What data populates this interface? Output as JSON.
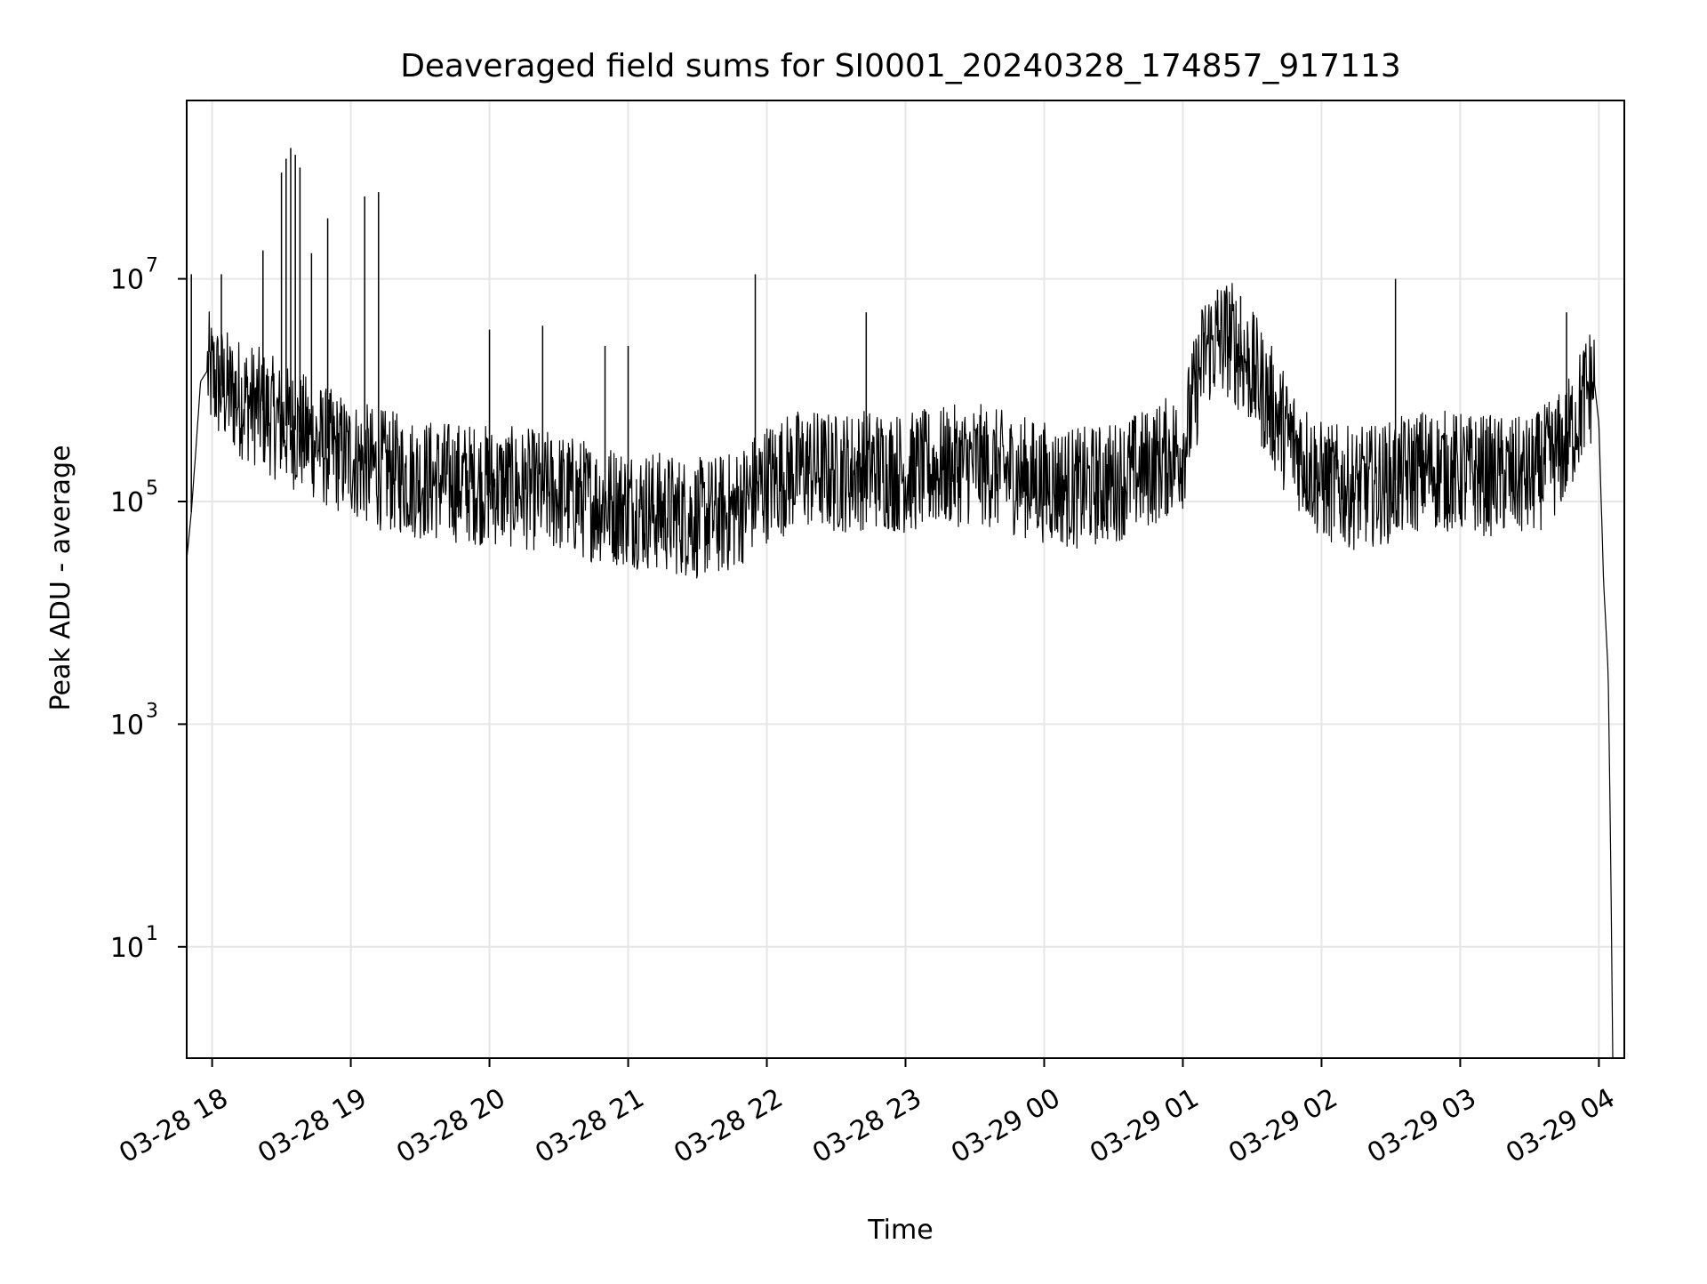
{
  "chart_data": {
    "type": "line",
    "title": "Deaveraged field sums for SI0001_20240328_174857_917113",
    "xlabel": "Time",
    "ylabel": "Peak ADU - average",
    "yscale": "log",
    "ylim": [
      1,
      400000000
    ],
    "xlim": [
      "03-28 17:49",
      "03-29 04:11"
    ],
    "x_ticks": [
      "03-28 18",
      "03-28 19",
      "03-28 20",
      "03-28 21",
      "03-28 22",
      "03-28 23",
      "03-29 00",
      "03-29 01",
      "03-29 02",
      "03-29 03",
      "03-29 04"
    ],
    "y_ticks": [
      {
        "value": 10,
        "base": "10",
        "exp": "1"
      },
      {
        "value": 1000,
        "base": "10",
        "exp": "3"
      },
      {
        "value": 100000,
        "base": "10",
        "exp": "5"
      },
      {
        "value": 10000000,
        "base": "10",
        "exp": "7"
      }
    ],
    "grid": true,
    "line_color": "#000000",
    "series": [
      {
        "x": [
          "03-28 17:49",
          "03-28 17:51",
          "03-28 17:53",
          "03-28 17:55",
          "03-28 17:58",
          "03-28 18:02",
          "03-28 18:06",
          "03-28 18:10",
          "03-28 18:15",
          "03-28 18:20",
          "03-28 18:25",
          "03-28 18:30",
          "03-28 18:35",
          "03-28 18:40",
          "03-28 18:45",
          "03-28 18:50",
          "03-28 19:00",
          "03-28 19:10",
          "03-28 19:20",
          "03-28 19:30",
          "03-28 19:45",
          "03-28 20:00",
          "03-28 20:15",
          "03-28 20:30",
          "03-28 20:45",
          "03-28 21:00",
          "03-28 21:15",
          "03-28 21:30",
          "03-28 21:45",
          "03-28 22:00",
          "03-28 22:15",
          "03-28 22:30",
          "03-28 22:45",
          "03-28 23:00",
          "03-28 23:15",
          "03-28 23:30",
          "03-28 23:45",
          "03-29 00:00",
          "03-29 00:15",
          "03-29 00:30",
          "03-29 00:45",
          "03-29 01:00",
          "03-29 01:10",
          "03-29 01:20",
          "03-29 01:30",
          "03-29 01:45",
          "03-29 02:00",
          "03-29 02:15",
          "03-29 02:30",
          "03-29 02:45",
          "03-29 03:00",
          "03-29 03:15",
          "03-29 03:30",
          "03-29 03:45",
          "03-29 03:55",
          "03-29 03:58",
          "03-29 04:00",
          "03-29 04:02",
          "03-29 04:04",
          "03-29 04:05",
          "03-29 04:06"
        ],
        "y": [
          30000,
          80000,
          300000,
          1200000,
          1500000,
          1200000,
          1000000,
          900000,
          800000,
          700000,
          600000,
          500000,
          450000,
          400000,
          350000,
          300000,
          250000,
          200000,
          180000,
          160000,
          150000,
          140000,
          130000,
          120000,
          100000,
          90000,
          80000,
          70000,
          80000,
          150000,
          200000,
          180000,
          200000,
          180000,
          200000,
          220000,
          180000,
          150000,
          130000,
          150000,
          200000,
          300000,
          2500000,
          3000000,
          1500000,
          400000,
          150000,
          130000,
          150000,
          200000,
          180000,
          170000,
          160000,
          300000,
          1000000,
          1200000,
          500000,
          20000,
          3000,
          100,
          1
        ]
      }
    ],
    "spikes": [
      {
        "x": "03-28 17:51",
        "y": 11000000
      },
      {
        "x": "03-28 18:04",
        "y": 11000000
      },
      {
        "x": "03-28 18:22",
        "y": 18000000
      },
      {
        "x": "03-28 18:30",
        "y": 90000000
      },
      {
        "x": "03-28 18:32",
        "y": 120000000
      },
      {
        "x": "03-28 18:34",
        "y": 150000000
      },
      {
        "x": "03-28 18:36",
        "y": 130000000
      },
      {
        "x": "03-28 18:38",
        "y": 100000000
      },
      {
        "x": "03-28 18:43",
        "y": 17000000
      },
      {
        "x": "03-28 18:50",
        "y": 35000000
      },
      {
        "x": "03-28 19:06",
        "y": 55000000
      },
      {
        "x": "03-28 19:12",
        "y": 60000000
      },
      {
        "x": "03-28 20:00",
        "y": 3500000
      },
      {
        "x": "03-28 20:23",
        "y": 3800000
      },
      {
        "x": "03-28 20:50",
        "y": 2500000
      },
      {
        "x": "03-28 21:00",
        "y": 2500000
      },
      {
        "x": "03-28 21:55",
        "y": 11000000
      },
      {
        "x": "03-28 22:43",
        "y": 5000000
      },
      {
        "x": "03-29 01:15",
        "y": 8000000
      },
      {
        "x": "03-29 01:25",
        "y": 7000000
      },
      {
        "x": "03-29 02:32",
        "y": 10000000
      },
      {
        "x": "03-29 03:46",
        "y": 5000000
      }
    ]
  }
}
